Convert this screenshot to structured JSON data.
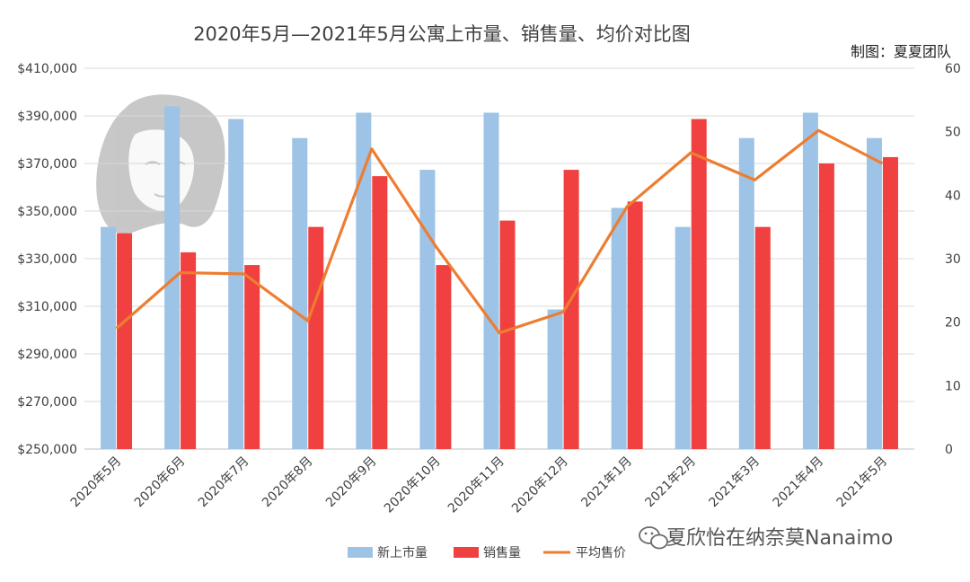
{
  "chart_data": {
    "type": "bar",
    "title": "2020年5月—2021年5月公寓上市量、销售量、均价对比图",
    "credit": "制图：夏夏团队",
    "categories": [
      "2020年5月",
      "2020年6月",
      "2020年7月",
      "2020年8月",
      "2020年9月",
      "2020年10月",
      "2020年11月",
      "2020年12月",
      "2021年1月",
      "2021年2月",
      "2021年3月",
      "2021年4月",
      "2021年5月"
    ],
    "y_left": {
      "range": [
        250000,
        410000
      ],
      "ticks": [
        "$250,000",
        "$270,000",
        "$290,000",
        "$310,000",
        "$330,000",
        "$350,000",
        "$370,000",
        "$390,000",
        "$410,000"
      ]
    },
    "y_right": {
      "range": [
        0,
        60
      ],
      "ticks": [
        "0",
        "10",
        "20",
        "30",
        "40",
        "50",
        "60"
      ]
    },
    "grid": true,
    "legend_position": "bottom",
    "series": [
      {
        "name": "新上市量",
        "kind": "bar",
        "axis": "right",
        "color": "#9dc3e6",
        "values": [
          35,
          54,
          52,
          49,
          53,
          44,
          53,
          22,
          38,
          35,
          49,
          53,
          49
        ]
      },
      {
        "name": "销售量",
        "kind": "bar",
        "axis": "right",
        "color": "#f04040",
        "values": [
          34,
          31,
          29,
          35,
          43,
          29,
          36,
          44,
          39,
          52,
          35,
          45,
          46
        ]
      },
      {
        "name": "平均售价",
        "kind": "line",
        "axis": "right",
        "color": "#ed7d31",
        "values": [
          19,
          27.8,
          27.6,
          20.2,
          47.3,
          32,
          18.3,
          21.6,
          38.2,
          46.7,
          42.4,
          50.2,
          45
        ]
      }
    ]
  },
  "watermark": {
    "text": "夏欣怡在纳奈莫Nanaimo",
    "icon": "wechat-icon"
  }
}
